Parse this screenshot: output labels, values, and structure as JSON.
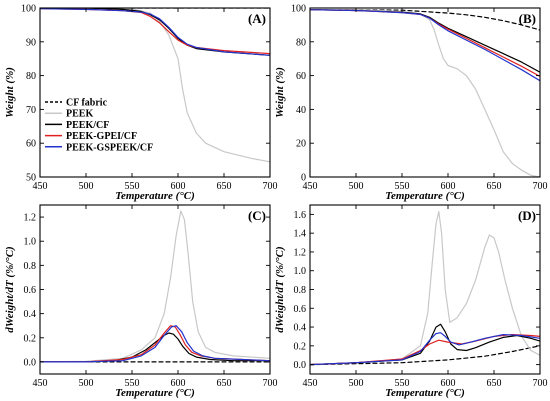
{
  "colors": {
    "cf_fabric": "#000000",
    "peek": "#c8c8c8",
    "peek_cf": "#000000",
    "peek_gpei_cf": "#e02020",
    "peek_gspeek_cf": "#2233cc"
  },
  "legend": [
    {
      "key": "cf_fabric",
      "label": "CF fabric",
      "dashed": true
    },
    {
      "key": "peek",
      "label": "PEEK",
      "dashed": false
    },
    {
      "key": "peek_cf",
      "label": "PEEK/CF",
      "dashed": false
    },
    {
      "key": "peek_gpei_cf",
      "label": "PEEK-GPEI/CF",
      "dashed": false
    },
    {
      "key": "peek_gspeek_cf",
      "label": "PEEK-GSPEEK/CF",
      "dashed": false
    }
  ],
  "chart_data": [
    {
      "panel": "(A)",
      "type": "line",
      "xlabel": "Temperature (°C)",
      "ylabel": "Weight (%)",
      "xlim": [
        450,
        700
      ],
      "ylim": [
        50,
        100
      ],
      "xticks": [
        "450",
        "500",
        "550",
        "600",
        "650",
        "700"
      ],
      "yticks": [
        "50",
        "60",
        "70",
        "80",
        "90",
        "100"
      ],
      "legend_position": "lower-left",
      "series": [
        {
          "key": "cf_fabric",
          "name": "CF fabric",
          "dashed": true,
          "x": [
            450,
            500,
            550,
            600,
            650,
            700
          ],
          "y": [
            100,
            100,
            100,
            100,
            100,
            100
          ]
        },
        {
          "key": "peek",
          "name": "PEEK",
          "x": [
            450,
            500,
            550,
            570,
            580,
            590,
            600,
            605,
            610,
            620,
            630,
            650,
            680,
            700
          ],
          "y": [
            100,
            100,
            99.7,
            98.5,
            96,
            92,
            85,
            76,
            69,
            63,
            60,
            57.5,
            55.5,
            54.5
          ]
        },
        {
          "key": "peek_cf",
          "name": "PEEK/CF",
          "x": [
            450,
            500,
            540,
            560,
            570,
            580,
            590,
            600,
            610,
            620,
            650,
            700
          ],
          "y": [
            100,
            100,
            99.6,
            99,
            98,
            96.5,
            94,
            91,
            89,
            88,
            87,
            86
          ]
        },
        {
          "key": "peek_gpei_cf",
          "name": "PEEK-GPEI/CF",
          "x": [
            450,
            500,
            540,
            560,
            570,
            580,
            590,
            600,
            610,
            620,
            650,
            700
          ],
          "y": [
            99.8,
            99.6,
            99.2,
            98.7,
            97.5,
            95.6,
            93,
            90.5,
            89,
            88.3,
            87.4,
            86.5
          ]
        },
        {
          "key": "peek_gspeek_cf",
          "name": "PEEK-GSPEEK/CF",
          "x": [
            450,
            500,
            540,
            560,
            570,
            580,
            590,
            600,
            610,
            620,
            650,
            700
          ],
          "y": [
            99.8,
            99.6,
            99.2,
            98.8,
            98.2,
            96.8,
            94.3,
            91.3,
            89.3,
            88.3,
            87,
            86
          ]
        }
      ]
    },
    {
      "panel": "(B)",
      "type": "line",
      "xlabel": "Temperature (°C)",
      "ylabel": "Weight (%)",
      "xlim": [
        450,
        700
      ],
      "ylim": [
        0,
        100
      ],
      "xticks": [
        "450",
        "500",
        "550",
        "600",
        "650",
        "700"
      ],
      "yticks": [
        "0",
        "20",
        "40",
        "60",
        "80",
        "100"
      ],
      "series": [
        {
          "key": "cf_fabric",
          "name": "CF fabric",
          "dashed": true,
          "x": [
            450,
            500,
            550,
            600,
            620,
            640,
            660,
            680,
            700
          ],
          "y": [
            99,
            99,
            98.7,
            97,
            96,
            94.5,
            92.5,
            90,
            87
          ]
        },
        {
          "key": "peek",
          "name": "PEEK",
          "x": [
            450,
            500,
            550,
            570,
            580,
            585,
            590,
            595,
            600,
            610,
            620,
            630,
            640,
            650,
            660,
            670,
            680,
            690,
            700
          ],
          "y": [
            99,
            99,
            98,
            96.5,
            93,
            87,
            78,
            70,
            66,
            64,
            60,
            52,
            40,
            28,
            15,
            8,
            4,
            1,
            0
          ]
        },
        {
          "key": "peek_cf",
          "name": "PEEK/CF",
          "x": [
            450,
            500,
            550,
            570,
            580,
            590,
            600,
            620,
            640,
            660,
            680,
            700
          ],
          "y": [
            99,
            98.5,
            97.5,
            96.5,
            94.5,
            91,
            88,
            83,
            78,
            73,
            68,
            62
          ]
        },
        {
          "key": "peek_gpei_cf",
          "name": "PEEK-GPEI/CF",
          "x": [
            450,
            500,
            550,
            570,
            580,
            590,
            600,
            620,
            640,
            660,
            680,
            700
          ],
          "y": [
            99,
            98.5,
            97.3,
            96.2,
            94,
            90.5,
            87.5,
            82,
            76.5,
            71,
            65.5,
            59.5
          ]
        },
        {
          "key": "peek_gspeek_cf",
          "name": "PEEK-GSPEEK/CF",
          "x": [
            450,
            500,
            550,
            570,
            580,
            590,
            600,
            620,
            640,
            660,
            680,
            700
          ],
          "y": [
            99,
            98.5,
            97.3,
            96.2,
            94,
            90,
            86.5,
            81,
            75.5,
            69.5,
            63.5,
            57
          ]
        }
      ]
    },
    {
      "panel": "(C)",
      "type": "line",
      "xlabel": "Temperature (°C)",
      "ylabel": "dWeight/dT (%/°C)",
      "xlim": [
        450,
        700
      ],
      "ylim": [
        -0.1,
        1.3
      ],
      "xticks": [
        "450",
        "500",
        "550",
        "600",
        "650",
        "700"
      ],
      "yticks": [
        "0.0",
        "0.2",
        "0.4",
        "0.6",
        "0.8",
        "1.0",
        "1.2"
      ],
      "series": [
        {
          "key": "cf_fabric",
          "name": "CF fabric",
          "dashed": true,
          "x": [
            450,
            500,
            550,
            600,
            650,
            700
          ],
          "y": [
            0,
            0,
            0,
            0,
            0,
            0
          ]
        },
        {
          "key": "peek",
          "name": "PEEK",
          "x": [
            450,
            500,
            540,
            560,
            575,
            585,
            592,
            598,
            603,
            607,
            611,
            616,
            622,
            630,
            640,
            660,
            700
          ],
          "y": [
            0,
            0.005,
            0.03,
            0.1,
            0.2,
            0.4,
            0.7,
            1.05,
            1.25,
            1.18,
            0.9,
            0.5,
            0.25,
            0.12,
            0.08,
            0.05,
            0.03
          ]
        },
        {
          "key": "peek_cf",
          "name": "PEEK/CF",
          "x": [
            450,
            500,
            530,
            550,
            565,
            575,
            585,
            590,
            595,
            600,
            605,
            612,
            620,
            635,
            660,
            700
          ],
          "y": [
            0,
            0,
            0.01,
            0.04,
            0.1,
            0.16,
            0.22,
            0.24,
            0.23,
            0.19,
            0.13,
            0.07,
            0.04,
            0.02,
            0.01,
            0.01
          ]
        },
        {
          "key": "peek_gpei_cf",
          "name": "PEEK-GPEI/CF",
          "x": [
            450,
            500,
            540,
            560,
            575,
            585,
            592,
            597,
            602,
            608,
            615,
            625,
            640,
            670,
            700
          ],
          "y": [
            0,
            0,
            0.02,
            0.06,
            0.14,
            0.24,
            0.3,
            0.29,
            0.23,
            0.14,
            0.08,
            0.05,
            0.03,
            0.02,
            0.01
          ]
        },
        {
          "key": "peek_gspeek_cf",
          "name": "PEEK-GSPEEK/CF",
          "x": [
            450,
            500,
            540,
            560,
            575,
            585,
            593,
            598,
            604,
            610,
            617,
            627,
            640,
            670,
            700
          ],
          "y": [
            0,
            0,
            0.01,
            0.05,
            0.12,
            0.22,
            0.29,
            0.3,
            0.25,
            0.16,
            0.09,
            0.05,
            0.03,
            0.02,
            0.01
          ]
        }
      ]
    },
    {
      "panel": "(D)",
      "type": "line",
      "xlabel": "Temperature (°C)",
      "ylabel": "dWeight/dT (%/°C)",
      "xlim": [
        450,
        700
      ],
      "ylim": [
        -0.1,
        1.7
      ],
      "xticks": [
        "450",
        "500",
        "550",
        "600",
        "650",
        "700"
      ],
      "yticks": [
        "0.0",
        "0.2",
        "0.4",
        "0.6",
        "0.8",
        "1.0",
        "1.2",
        "1.4",
        "1.6"
      ],
      "series": [
        {
          "key": "cf_fabric",
          "name": "CF fabric",
          "dashed": true,
          "x": [
            450,
            500,
            550,
            600,
            640,
            670,
            700
          ],
          "y": [
            0.0,
            0.01,
            0.02,
            0.05,
            0.09,
            0.14,
            0.2
          ]
        },
        {
          "key": "peek",
          "name": "PEEK",
          "x": [
            450,
            500,
            550,
            570,
            578,
            583,
            587,
            590,
            593,
            597,
            602,
            610,
            620,
            630,
            640,
            645,
            650,
            655,
            662,
            670,
            680,
            690,
            700
          ],
          "y": [
            0,
            0.02,
            0.06,
            0.2,
            0.55,
            1.1,
            1.5,
            1.63,
            1.4,
            0.8,
            0.45,
            0.5,
            0.65,
            0.9,
            1.25,
            1.38,
            1.35,
            1.2,
            0.9,
            0.6,
            0.3,
            0.15,
            0.1
          ]
        },
        {
          "key": "peek_cf",
          "name": "PEEK/CF",
          "x": [
            450,
            500,
            550,
            570,
            580,
            587,
            592,
            597,
            603,
            610,
            620,
            630,
            645,
            660,
            675,
            690,
            700
          ],
          "y": [
            0,
            0.02,
            0.05,
            0.12,
            0.25,
            0.4,
            0.43,
            0.35,
            0.22,
            0.16,
            0.15,
            0.18,
            0.24,
            0.29,
            0.31,
            0.28,
            0.25
          ]
        },
        {
          "key": "peek_gpei_cf",
          "name": "PEEK-GPEI/CF",
          "x": [
            450,
            500,
            550,
            570,
            580,
            590,
            600,
            615,
            630,
            650,
            670,
            690,
            700
          ],
          "y": [
            0,
            0.02,
            0.06,
            0.15,
            0.22,
            0.26,
            0.24,
            0.22,
            0.25,
            0.3,
            0.32,
            0.31,
            0.3
          ]
        },
        {
          "key": "peek_gspeek_cf",
          "name": "PEEK-GSPEEK/CF",
          "x": [
            450,
            500,
            550,
            570,
            580,
            587,
            592,
            597,
            603,
            612,
            625,
            640,
            660,
            680,
            700
          ],
          "y": [
            0,
            0.02,
            0.05,
            0.14,
            0.26,
            0.33,
            0.34,
            0.3,
            0.24,
            0.21,
            0.24,
            0.28,
            0.32,
            0.31,
            0.28
          ]
        }
      ]
    }
  ]
}
